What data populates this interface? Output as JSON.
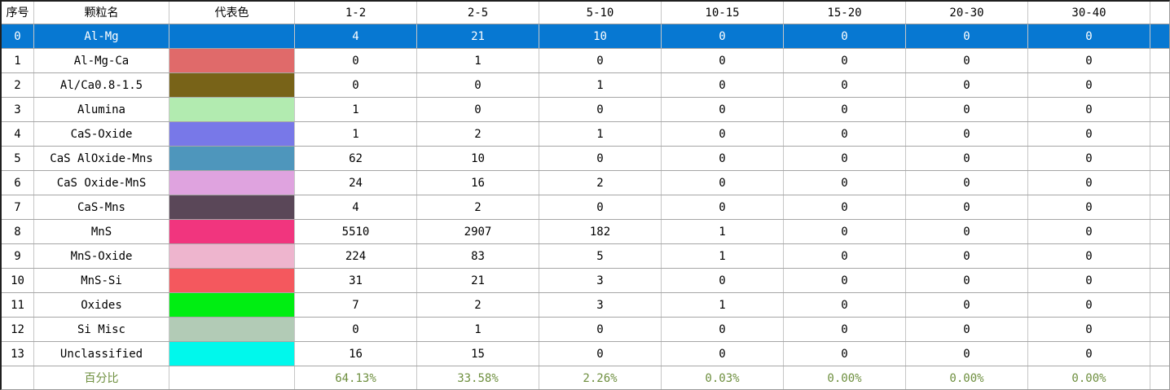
{
  "table": {
    "columns": [
      "序号",
      "颗粒名",
      "代表色",
      "1-2",
      "2-5",
      "5-10",
      "10-15",
      "15-20",
      "20-30",
      "30-40"
    ],
    "rows": [
      {
        "index": "0",
        "name": "Al-Mg",
        "color": "",
        "selected": true,
        "values": [
          "4",
          "21",
          "10",
          "0",
          "0",
          "0",
          "0"
        ]
      },
      {
        "index": "1",
        "name": "Al-Mg-Ca",
        "color": "#e06a6a",
        "selected": false,
        "values": [
          "0",
          "1",
          "0",
          "0",
          "0",
          "0",
          "0"
        ]
      },
      {
        "index": "2",
        "name": "Al/Ca0.8-1.5",
        "color": "#786318",
        "selected": false,
        "values": [
          "0",
          "0",
          "1",
          "0",
          "0",
          "0",
          "0"
        ]
      },
      {
        "index": "3",
        "name": "Alumina",
        "color": "#b2ebb0",
        "selected": false,
        "values": [
          "1",
          "0",
          "0",
          "0",
          "0",
          "0",
          "0"
        ]
      },
      {
        "index": "4",
        "name": "CaS-Oxide",
        "color": "#7878e8",
        "selected": false,
        "values": [
          "1",
          "2",
          "1",
          "0",
          "0",
          "0",
          "0"
        ]
      },
      {
        "index": "5",
        "name": "CaS AlOxide-Mns",
        "color": "#4e96bc",
        "selected": false,
        "values": [
          "62",
          "10",
          "0",
          "0",
          "0",
          "0",
          "0"
        ]
      },
      {
        "index": "6",
        "name": "CaS Oxide-MnS",
        "color": "#dfa3df",
        "selected": false,
        "values": [
          "24",
          "16",
          "2",
          "0",
          "0",
          "0",
          "0"
        ]
      },
      {
        "index": "7",
        "name": "CaS-Mns",
        "color": "#5a4758",
        "selected": false,
        "values": [
          "4",
          "2",
          "0",
          "0",
          "0",
          "0",
          "0"
        ]
      },
      {
        "index": "8",
        "name": "MnS",
        "color": "#f1357e",
        "selected": false,
        "values": [
          "5510",
          "2907",
          "182",
          "1",
          "0",
          "0",
          "0"
        ]
      },
      {
        "index": "9",
        "name": "MnS-Oxide",
        "color": "#eeb5ce",
        "selected": false,
        "values": [
          "224",
          "83",
          "5",
          "1",
          "0",
          "0",
          "0"
        ]
      },
      {
        "index": "10",
        "name": "MnS-Si",
        "color": "#f4585e",
        "selected": false,
        "values": [
          "31",
          "21",
          "3",
          "0",
          "0",
          "0",
          "0"
        ]
      },
      {
        "index": "11",
        "name": "Oxides",
        "color": "#00ee12",
        "selected": false,
        "values": [
          "7",
          "2",
          "3",
          "1",
          "0",
          "0",
          "0"
        ]
      },
      {
        "index": "12",
        "name": "Si Misc",
        "color": "#b2cbb6",
        "selected": false,
        "values": [
          "0",
          "1",
          "0",
          "0",
          "0",
          "0",
          "0"
        ]
      },
      {
        "index": "13",
        "name": "Unclassified",
        "color": "#00f8ec",
        "selected": false,
        "values": [
          "16",
          "15",
          "0",
          "0",
          "0",
          "0",
          "0"
        ]
      }
    ],
    "footer": {
      "label": "百分比",
      "values": [
        "64.13%",
        "33.58%",
        "2.26%",
        "0.03%",
        "0.00%",
        "0.00%",
        "0.00%"
      ]
    },
    "selection_color": "#0778d2",
    "percent_text_color": "#6e8f3f",
    "grid_line_color": "#c6c6c6"
  }
}
